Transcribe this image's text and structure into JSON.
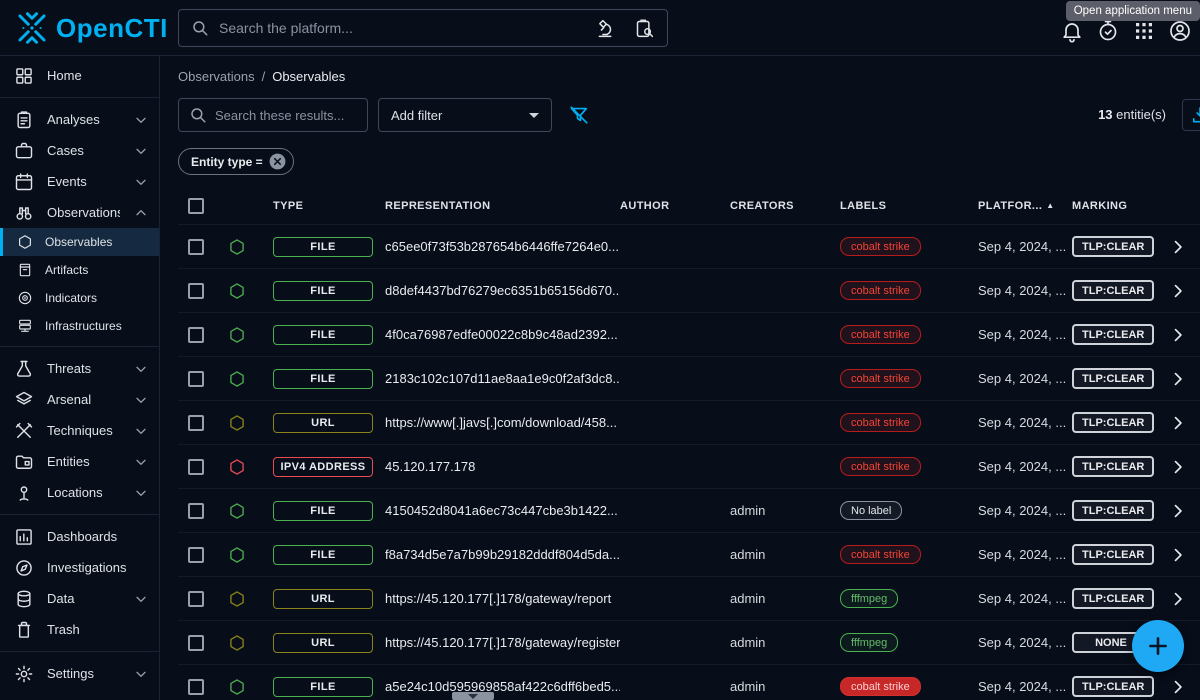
{
  "topbar": {
    "logo_text": "OpenCTI",
    "search_placeholder": "Search the platform...",
    "tooltip": "Open application menu",
    "icon_names": [
      "notifications-bell-icon",
      "timer-icon",
      "app-menu-grid-icon",
      "account-icon"
    ]
  },
  "sidebar": {
    "sections": [
      {
        "items": [
          {
            "label": "Home",
            "icon": "grid"
          }
        ]
      },
      {
        "items": [
          {
            "label": "Analyses",
            "icon": "clipboard",
            "chevron": "down"
          },
          {
            "label": "Cases",
            "icon": "briefcase",
            "chevron": "down"
          },
          {
            "label": "Events",
            "icon": "calendar",
            "chevron": "down"
          },
          {
            "label": "Observations",
            "icon": "binoculars",
            "chevron": "up"
          },
          {
            "label": "Observables",
            "icon": "hexagon",
            "sub": true,
            "selected": true
          },
          {
            "label": "Artifacts",
            "icon": "archive",
            "sub": true
          },
          {
            "label": "Indicators",
            "icon": "target",
            "sub": true
          },
          {
            "label": "Infrastructures",
            "icon": "server",
            "sub": true
          }
        ]
      },
      {
        "items": [
          {
            "label": "Threats",
            "icon": "flask",
            "chevron": "down"
          },
          {
            "label": "Arsenal",
            "icon": "layers",
            "chevron": "down"
          },
          {
            "label": "Techniques",
            "icon": "tools",
            "chevron": "down"
          },
          {
            "label": "Entities",
            "icon": "folder",
            "chevron": "down"
          },
          {
            "label": "Locations",
            "icon": "pin",
            "chevron": "down"
          }
        ]
      },
      {
        "items": [
          {
            "label": "Dashboards",
            "icon": "chart"
          },
          {
            "label": "Investigations",
            "icon": "compass"
          },
          {
            "label": "Data",
            "icon": "database",
            "chevron": "down"
          },
          {
            "label": "Trash",
            "icon": "trash"
          }
        ]
      },
      {
        "items": [
          {
            "label": "Settings",
            "icon": "gear",
            "chevron": "down"
          }
        ]
      }
    ]
  },
  "content": {
    "breadcrumb": [
      "Observations",
      "Observables"
    ],
    "search_placeholder": "Search these results...",
    "add_filter_label": "Add filter",
    "filter_chip": "Entity type = ",
    "count_value": "13",
    "count_suffix": " entitie(s)"
  },
  "table": {
    "headers": [
      "TYPE",
      "REPRESENTATION",
      "AUTHOR",
      "CREATORS",
      "LABELS",
      "PLATFOR...",
      "MARKING"
    ],
    "sort": {
      "column": "PLATFOR...",
      "direction": "asc"
    },
    "rows": [
      {
        "type": "FILE",
        "tcolor": "file",
        "representation": "c65ee0f73f53b287654b6446ffe7264e0...",
        "author": "",
        "creators": "",
        "labels": [
          {
            "text": "cobalt strike",
            "style": "red"
          }
        ],
        "date": "Sep 4, 2024, ...",
        "marking": "TLP:CLEAR"
      },
      {
        "type": "FILE",
        "tcolor": "file",
        "representation": "d8def4437bd76279ec6351b65156d670...",
        "author": "",
        "creators": "",
        "labels": [
          {
            "text": "cobalt strike",
            "style": "red"
          }
        ],
        "date": "Sep 4, 2024, ...",
        "marking": "TLP:CLEAR"
      },
      {
        "type": "FILE",
        "tcolor": "file",
        "representation": "4f0ca76987edfe00022c8b9c48ad2392...",
        "author": "",
        "creators": "",
        "labels": [
          {
            "text": "cobalt strike",
            "style": "red"
          }
        ],
        "date": "Sep 4, 2024, ...",
        "marking": "TLP:CLEAR"
      },
      {
        "type": "FILE",
        "tcolor": "file",
        "representation": "2183c102c107d11ae8aa1e9c0f2af3dc8...",
        "author": "",
        "creators": "",
        "labels": [
          {
            "text": "cobalt strike",
            "style": "red"
          }
        ],
        "date": "Sep 4, 2024, ...",
        "marking": "TLP:CLEAR"
      },
      {
        "type": "URL",
        "tcolor": "url",
        "representation": "https://www[.]javs[.]com/download/458...",
        "author": "",
        "creators": "",
        "labels": [
          {
            "text": "cobalt strike",
            "style": "red"
          }
        ],
        "date": "Sep 4, 2024, ...",
        "marking": "TLP:CLEAR"
      },
      {
        "type": "IPV4 ADDRESS",
        "tcolor": "ip",
        "representation": "45.120.177.178",
        "author": "",
        "creators": "",
        "labels": [
          {
            "text": "cobalt strike",
            "style": "red"
          }
        ],
        "date": "Sep 4, 2024, ...",
        "marking": "TLP:CLEAR"
      },
      {
        "type": "FILE",
        "tcolor": "file",
        "representation": "4150452d8041a6ec73c447cbe3b1422...",
        "author": "",
        "creators": "admin",
        "labels": [
          {
            "text": "No label",
            "style": "grey"
          }
        ],
        "date": "Sep 4, 2024, ...",
        "marking": "TLP:CLEAR"
      },
      {
        "type": "FILE",
        "tcolor": "file",
        "representation": "f8a734d5e7a7b99b29182dddf804d5da...",
        "author": "",
        "creators": "admin",
        "labels": [
          {
            "text": "cobalt strike",
            "style": "red"
          }
        ],
        "date": "Sep 4, 2024, ...",
        "marking": "TLP:CLEAR"
      },
      {
        "type": "URL",
        "tcolor": "url",
        "representation": "https://45.120.177[.]178/gateway/report",
        "author": "",
        "creators": "admin",
        "labels": [
          {
            "text": "fffmpeg",
            "style": "green"
          }
        ],
        "date": "Sep 4, 2024, ...",
        "marking": "TLP:CLEAR"
      },
      {
        "type": "URL",
        "tcolor": "url",
        "representation": "https://45.120.177[.]178/gateway/register",
        "author": "",
        "creators": "admin",
        "labels": [
          {
            "text": "fffmpeg",
            "style": "green"
          }
        ],
        "date": "Sep 4, 2024, ...",
        "marking": "NONE"
      },
      {
        "type": "FILE",
        "tcolor": "file",
        "representation": "a5e24c10d595969858af422c6dff6bed5...",
        "author": "",
        "creators": "admin",
        "labels": [
          {
            "text": "cobalt strike",
            "style": "redfill"
          }
        ],
        "date": "Sep 4, 2024, ...",
        "marking": "TLP:CLEAR"
      }
    ]
  },
  "fab": {
    "label": "+"
  },
  "colors": {
    "accent_blue": "#00b1f2",
    "type_file_green": "#4caf50",
    "type_url_olive": "#8a831a",
    "type_ip_red": "#ea4b55",
    "label_red": "#f44336",
    "label_green": "#66bb6a",
    "marking_border": "#cfd3d9",
    "background": "#070d19"
  }
}
